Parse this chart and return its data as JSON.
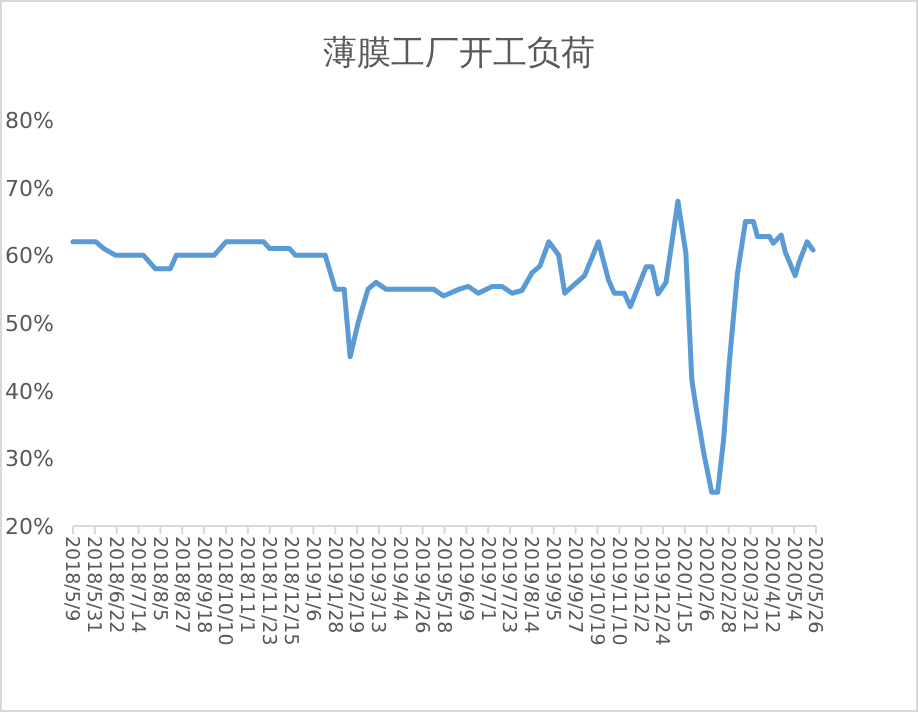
{
  "chart_data": {
    "type": "line",
    "title": "薄膜工厂开工负荷",
    "x": [
      "2018-05-09",
      "2018-06-01",
      "2018-06-09",
      "2018-06-21",
      "2018-07-19",
      "2018-07-31",
      "2018-08-15",
      "2018-08-21",
      "2018-09-28",
      "2018-10-10",
      "2018-11-17",
      "2018-11-23",
      "2018-12-13",
      "2018-12-19",
      "2019-01-18",
      "2019-01-28",
      "2019-02-06",
      "2019-02-12",
      "2019-02-20",
      "2019-03-02",
      "2019-03-10",
      "2019-03-20",
      "2019-05-07",
      "2019-05-17",
      "2019-06-02",
      "2019-06-11",
      "2019-06-21",
      "2019-07-05",
      "2019-07-15",
      "2019-07-25",
      "2019-08-04",
      "2019-08-14",
      "2019-08-22",
      "2019-08-31",
      "2019-09-10",
      "2019-09-16",
      "2019-10-06",
      "2019-10-20",
      "2019-10-30",
      "2019-11-05",
      "2019-11-15",
      "2019-11-21",
      "2019-12-07",
      "2019-12-13",
      "2019-12-19",
      "2019-12-27",
      "2020-01-08",
      "2020-01-16",
      "2020-01-22",
      "2020-01-26",
      "2020-02-03",
      "2020-02-11",
      "2020-02-17",
      "2020-02-23",
      "2020-02-29",
      "2020-03-08",
      "2020-03-16",
      "2020-03-24",
      "2020-03-28",
      "2020-04-09",
      "2020-04-13",
      "2020-04-21",
      "2020-04-25",
      "2020-05-05",
      "2020-05-09",
      "2020-05-17",
      "2020-05-23"
    ],
    "series": [
      {
        "color": "#5b9bd5",
        "values": [
          62,
          62,
          61,
          60,
          60,
          58,
          58,
          60,
          60,
          62,
          62,
          61,
          61,
          60,
          60,
          55,
          55,
          45,
          50,
          55,
          56,
          55,
          55,
          54,
          55,
          55.4,
          54.4,
          55.4,
          55.4,
          54.4,
          54.8,
          57.4,
          58.4,
          62,
          60,
          54.4,
          57,
          62,
          56.4,
          54.4,
          54.4,
          52.4,
          58.3,
          58.3,
          54.3,
          56,
          68,
          60.3,
          41.6,
          37.7,
          30.8,
          25,
          25,
          32.8,
          44.6,
          57.4,
          65,
          65,
          62.8,
          62.8,
          61.8,
          63,
          60.5,
          57,
          59,
          62,
          60.8
        ]
      }
    ],
    "xlim": [
      "2018-05-09",
      "2020-05-26"
    ],
    "xticks": [
      {
        "value": "2018-05-09",
        "label": "2018/5/9"
      },
      {
        "value": "2018-05-31",
        "label": "2018/5/31"
      },
      {
        "value": "2018-06-22",
        "label": "2018/6/22"
      },
      {
        "value": "2018-07-14",
        "label": "2018/7/14"
      },
      {
        "value": "2018-08-05",
        "label": "2018/8/5"
      },
      {
        "value": "2018-08-27",
        "label": "2018/8/27"
      },
      {
        "value": "2018-09-18",
        "label": "2018/9/18"
      },
      {
        "value": "2018-10-10",
        "label": "2018/10/10"
      },
      {
        "value": "2018-11-01",
        "label": "2018/11/1"
      },
      {
        "value": "2018-11-23",
        "label": "2018/11/23"
      },
      {
        "value": "2018-12-15",
        "label": "2018/12/15"
      },
      {
        "value": "2019-01-06",
        "label": "2019/1/6"
      },
      {
        "value": "2019-01-28",
        "label": "2019/1/28"
      },
      {
        "value": "2019-02-19",
        "label": "2019/2/19"
      },
      {
        "value": "2019-03-13",
        "label": "2019/3/13"
      },
      {
        "value": "2019-04-04",
        "label": "2019/4/4"
      },
      {
        "value": "2019-04-26",
        "label": "2019/4/26"
      },
      {
        "value": "2019-05-18",
        "label": "2019/5/18"
      },
      {
        "value": "2019-06-09",
        "label": "2019/6/9"
      },
      {
        "value": "2019-07-01",
        "label": "2019/7/1"
      },
      {
        "value": "2019-07-23",
        "label": "2019/7/23"
      },
      {
        "value": "2019-08-14",
        "label": "2019/8/14"
      },
      {
        "value": "2019-09-05",
        "label": "2019/9/5"
      },
      {
        "value": "2019-09-27",
        "label": "2019/9/27"
      },
      {
        "value": "2019-10-19",
        "label": "2019/10/19"
      },
      {
        "value": "2019-11-10",
        "label": "2019/11/10"
      },
      {
        "value": "2019-12-02",
        "label": "2019/12/2"
      },
      {
        "value": "2019-12-24",
        "label": "2019/12/24"
      },
      {
        "value": "2020-01-15",
        "label": "2020/1/15"
      },
      {
        "value": "2020-02-06",
        "label": "2020/2/6"
      },
      {
        "value": "2020-02-28",
        "label": "2020/2/28"
      },
      {
        "value": "2020-03-21",
        "label": "2020/3/21"
      },
      {
        "value": "2020-04-12",
        "label": "2020/4/12"
      },
      {
        "value": "2020-05-04",
        "label": "2020/5/4"
      },
      {
        "value": "2020-05-26",
        "label": "2020/5/26"
      }
    ],
    "ylim": [
      20,
      80
    ],
    "yticks": [
      {
        "value": 20,
        "label": "20%"
      },
      {
        "value": 30,
        "label": "30%"
      },
      {
        "value": 40,
        "label": "40%"
      },
      {
        "value": 50,
        "label": "50%"
      },
      {
        "value": 60,
        "label": "60%"
      },
      {
        "value": 70,
        "label": "70%"
      },
      {
        "value": 80,
        "label": "80%"
      }
    ],
    "grid": false,
    "marker": "none",
    "line_style": "solid"
  }
}
